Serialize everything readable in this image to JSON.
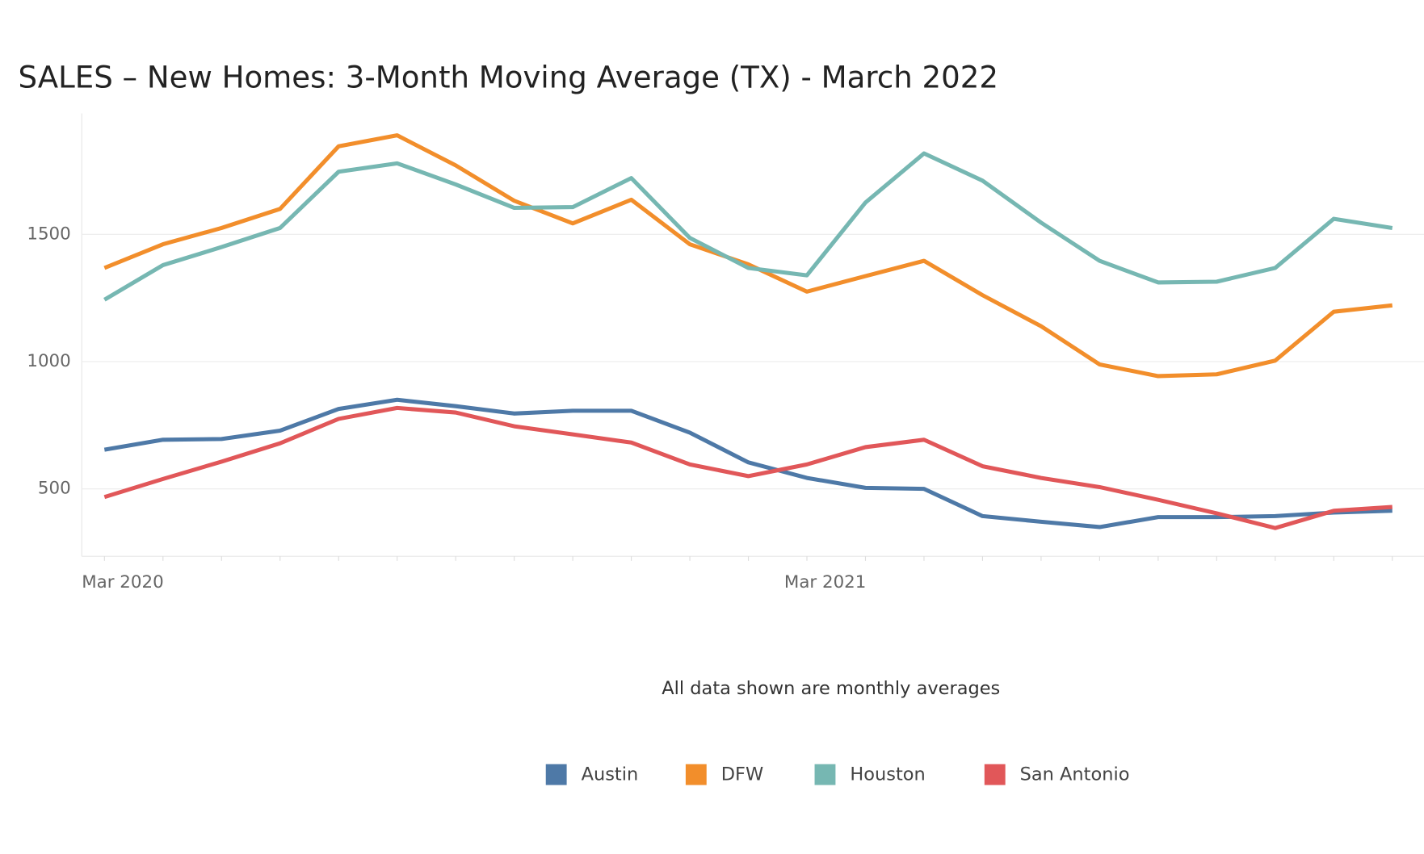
{
  "chart_data": {
    "type": "line",
    "title": "SALES – New Homes: 3-Month Moving Average (TX)  - March 2022",
    "subtitle": "All data shown are monthly averages",
    "categories": [
      "Mar 2020",
      null,
      null,
      null,
      null,
      null,
      null,
      null,
      null,
      null,
      null,
      null,
      "Mar 2021",
      null,
      null,
      null,
      null,
      null,
      null,
      null,
      null,
      null,
      null
    ],
    "ylim": [
      235,
      1975
    ],
    "yticks": [
      500,
      1000,
      1500
    ],
    "grid": true,
    "series": [
      {
        "name": "Austin",
        "color": "#4e79a7",
        "values": [
          654,
          693,
          696,
          729,
          814,
          850,
          825,
          796,
          807,
          807,
          721,
          604,
          543,
          504,
          500,
          393,
          371,
          350,
          389,
          389,
          393,
          407,
          414
        ]
      },
      {
        "name": "DFW",
        "color": "#f28e2b",
        "values": [
          1368,
          1461,
          1525,
          1600,
          1846,
          1889,
          1771,
          1632,
          1543,
          1636,
          1461,
          1382,
          1275,
          1336,
          1396,
          1261,
          1139,
          989,
          943,
          950,
          1004,
          1196,
          1221
        ]
      },
      {
        "name": "Houston",
        "color": "#76b7b2",
        "values": [
          1243,
          1379,
          1450,
          1525,
          1746,
          1779,
          1696,
          1604,
          1607,
          1721,
          1486,
          1368,
          1339,
          1625,
          1818,
          1711,
          1546,
          1396,
          1311,
          1314,
          1368,
          1561,
          1525
        ]
      },
      {
        "name": "San Antonio",
        "color": "#e15759",
        "values": [
          468,
          539,
          607,
          679,
          775,
          818,
          800,
          746,
          714,
          682,
          596,
          550,
          596,
          664,
          693,
          589,
          543,
          507,
          457,
          404,
          346,
          414,
          429
        ]
      }
    ]
  }
}
